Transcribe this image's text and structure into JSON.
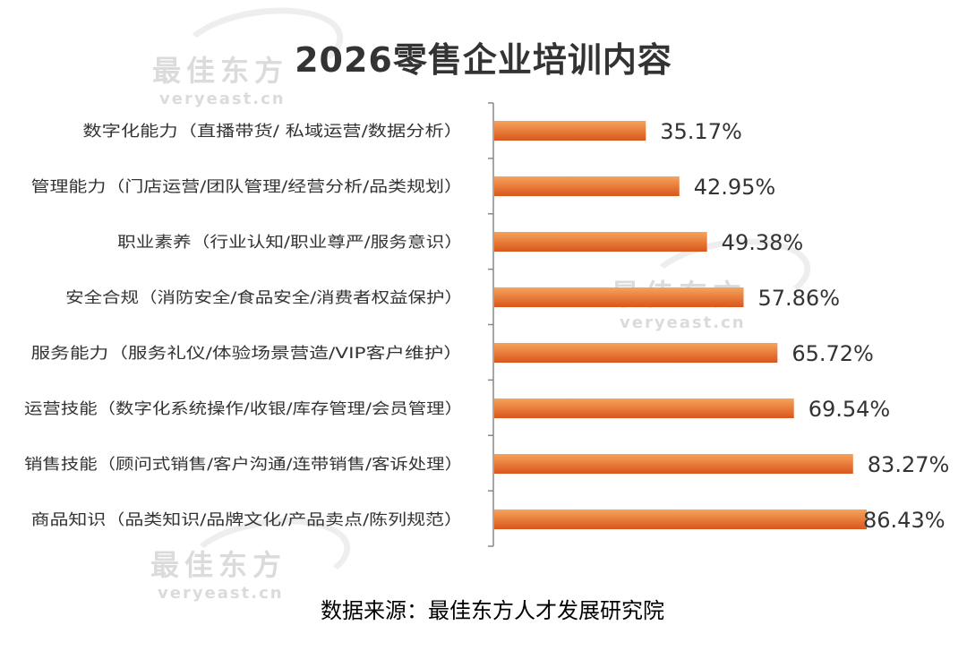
{
  "watermark": {
    "cn": "最佳东方",
    "en": "veryeast.cn"
  },
  "source": "数据来源：最佳东方人才发展研究院",
  "colors": {
    "bar_light": "#f7a35c",
    "bar_dark": "#d9561b",
    "axis": "#888888",
    "label": "#333333"
  },
  "chart_data": {
    "type": "bar",
    "orientation": "horizontal",
    "title": "2026零售企业培训内容",
    "categories": [
      "数字化能力（直播带货/ 私域运营/数据分析）",
      "管理能力（门店运营/团队管理/经营分析/品类规划）",
      "职业素养（行业认知/职业尊严/服务意识）",
      "安全合规（消防安全/食品安全/消费者权益保护）",
      "服务能力（服务礼仪/体验场景营造/VIP客户维护）",
      "运营技能（数字化系统操作/收银/库存管理/会员管理）",
      "销售技能（顾问式销售/客户沟通/连带销售/客诉处理）",
      "商品知识（品类知识/品牌文化/产品卖点/陈列规范）"
    ],
    "values": [
      35.17,
      42.95,
      49.38,
      57.86,
      65.72,
      69.54,
      83.27,
      86.43
    ],
    "value_labels": [
      "35.17%",
      "42.95%",
      "49.38%",
      "57.86%",
      "65.72%",
      "69.54%",
      "83.27%",
      "86.43%"
    ],
    "xlim": [
      0,
      100
    ],
    "grid": false,
    "legend": "none"
  }
}
